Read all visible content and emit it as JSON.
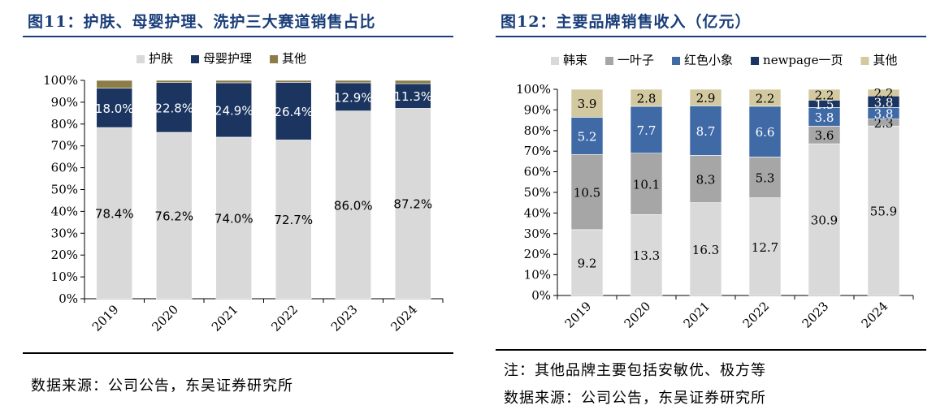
{
  "left": {
    "title": "图11：护肤、母婴护理、洗护三大赛道销售占比",
    "source": "数据来源：公司公告，东吴证券研究所",
    "chart_data": {
      "type": "bar",
      "stacked": true,
      "categories": [
        "2019",
        "2020",
        "2021",
        "2022",
        "2023",
        "2024"
      ],
      "ylim": [
        0,
        100
      ],
      "yticks": [
        "0%",
        "10%",
        "20%",
        "30%",
        "40%",
        "50%",
        "60%",
        "70%",
        "80%",
        "90%",
        "100%"
      ],
      "legend_position": "top",
      "series": [
        {
          "name": "护肤",
          "color": "#d9d9d9",
          "values": [
            78.4,
            76.2,
            74.0,
            72.7,
            86.0,
            87.2
          ],
          "labels": [
            "78.4%",
            "76.2%",
            "74.0%",
            "72.7%",
            "86.0%",
            "87.2%"
          ],
          "label_color": "#000000"
        },
        {
          "name": "母婴护理",
          "color": "#1b3560",
          "values": [
            18.0,
            22.8,
            24.9,
            26.4,
            12.9,
            11.3
          ],
          "labels": [
            "18.0%",
            "22.8%",
            "24.9%",
            "26.4%",
            "12.9%",
            "11.3%"
          ],
          "label_color": "#ffffff"
        },
        {
          "name": "其他",
          "color": "#8c7d48",
          "values": [
            3.6,
            1.0,
            1.1,
            0.9,
            1.1,
            1.5
          ],
          "labels": [
            "",
            "",
            "",
            "",
            "",
            ""
          ],
          "label_color": "#000000"
        }
      ]
    }
  },
  "right": {
    "title": "图12：主要品牌销售收入（亿元）",
    "note": "注：其他品牌主要包括安敏优、极方等",
    "source": "数据来源：公司公告，东吴证券研究所",
    "chart_data": {
      "type": "bar",
      "stacked": true,
      "normalized": true,
      "categories": [
        "2019",
        "2020",
        "2021",
        "2022",
        "2023",
        "2024"
      ],
      "ylim": [
        0,
        100
      ],
      "yticks": [
        "0%",
        "10%",
        "20%",
        "30%",
        "40%",
        "50%",
        "60%",
        "70%",
        "80%",
        "90%",
        "100%"
      ],
      "legend_position": "top",
      "series": [
        {
          "name": "韩束",
          "color": "#d9d9d9",
          "values": [
            9.2,
            13.3,
            16.3,
            12.7,
            30.9,
            55.9
          ],
          "label_color": "#000000"
        },
        {
          "name": "一叶子",
          "color": "#a6a6a6",
          "values": [
            10.5,
            10.1,
            8.3,
            5.3,
            3.6,
            2.3
          ],
          "label_color": "#000000"
        },
        {
          "name": "红色小象",
          "color": "#3f6aa6",
          "values": [
            5.2,
            7.7,
            8.7,
            6.6,
            3.8,
            3.8
          ],
          "label_color": "#ffffff"
        },
        {
          "name": "newpage一页",
          "color": "#1b3560",
          "values": [
            0,
            0,
            0,
            0,
            1.5,
            3.8
          ],
          "label_color": "#ffffff"
        },
        {
          "name": "其他",
          "color": "#d3c9a0",
          "values": [
            3.9,
            2.8,
            2.9,
            2.2,
            2.2,
            2.2
          ],
          "label_color": "#000000"
        }
      ]
    }
  }
}
